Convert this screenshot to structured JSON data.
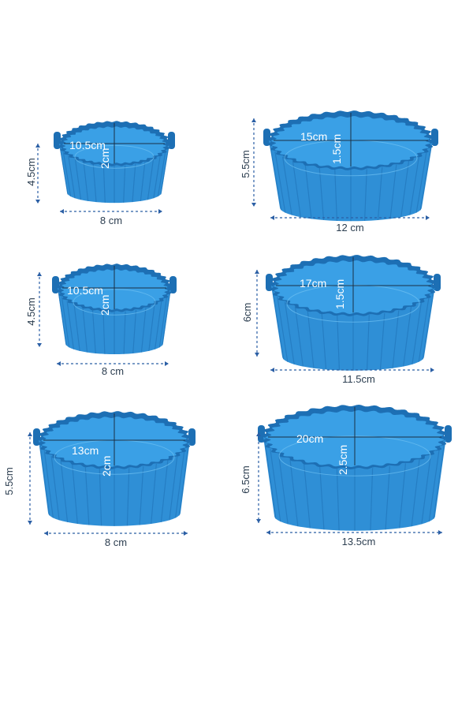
{
  "colors": {
    "silicone": "#2f8fd6",
    "silicone_dark": "#1d6fb4",
    "silicone_inner": "#3aa0e6",
    "dim_line": "#2b5fa5",
    "background": "#ffffff"
  },
  "products": [
    {
      "id": "s1",
      "top_label": "10.5cm",
      "depth_label": "2cm",
      "height_label": "4.5cm",
      "width_label": "8 cm"
    },
    {
      "id": "l1",
      "top_label": "15cm",
      "depth_label": "1.5cm",
      "height_label": "5.5cm",
      "width_label": "12 cm"
    },
    {
      "id": "s2",
      "top_label": "10.5cm",
      "depth_label": "2cm",
      "height_label": "4.5cm",
      "width_label": "8 cm"
    },
    {
      "id": "l2",
      "top_label": "17cm",
      "depth_label": "1.5cm",
      "height_label": "6cm",
      "width_label": "11.5cm"
    },
    {
      "id": "s3",
      "top_label": "13cm",
      "depth_label": "2cm",
      "height_label": "5.5cm",
      "width_label": "8 cm"
    },
    {
      "id": "l3",
      "top_label": "20cm",
      "depth_label": "2.5cm",
      "height_label": "6.5cm",
      "width_label": "13.5cm"
    }
  ]
}
